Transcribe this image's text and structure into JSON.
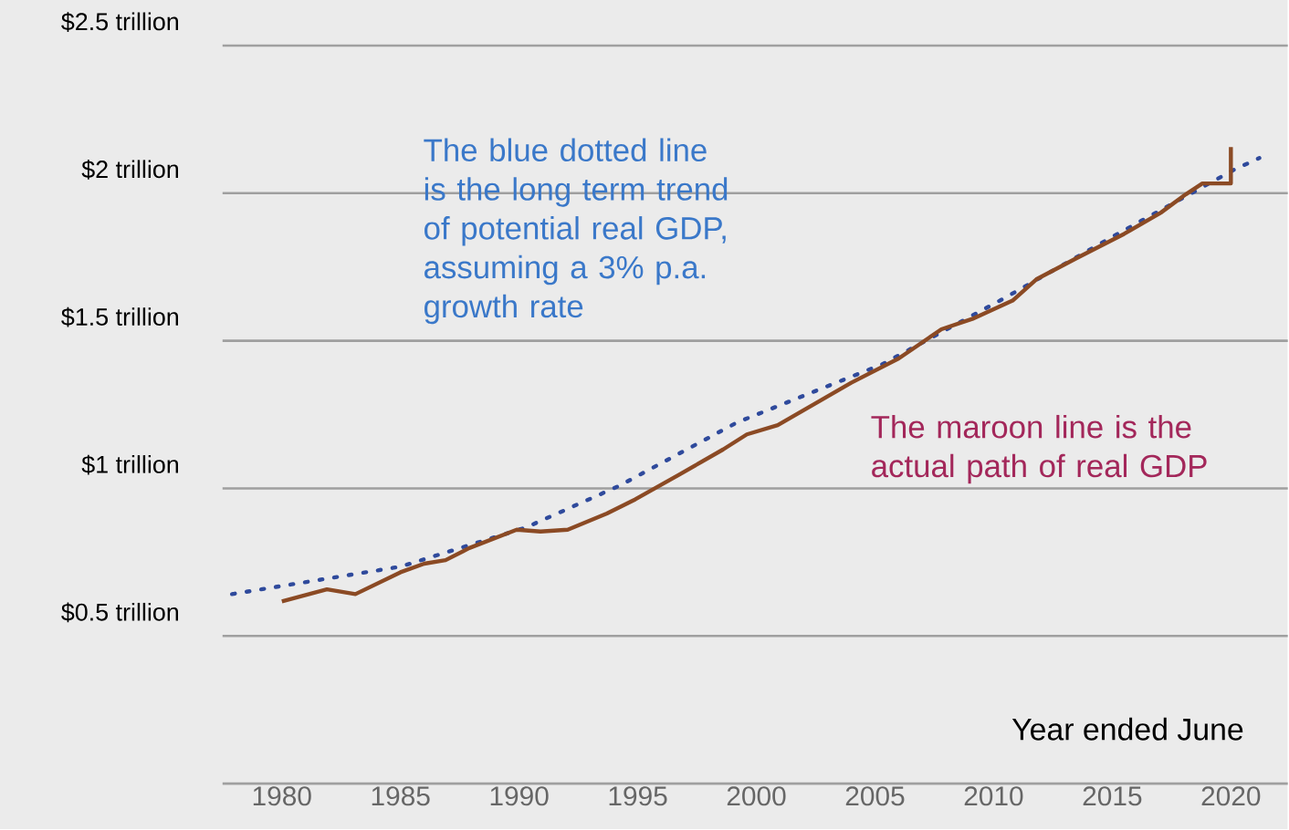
{
  "chart_data": {
    "type": "line",
    "xlabel": "Year ended June",
    "annotations": [
      "The blue dotted line is the long term trend of potential real GDP, assuming a 3% p.a. growth rate",
      "The maroon line is the actual path of real GDP"
    ],
    "series": [
      {
        "color": "#2f4a9c",
        "line_style": "dotted",
        "x": [
          1977.9,
          1985,
          1990.3,
          1994.2,
          1999.2,
          2005.3,
          2010.4,
          2015,
          2020.1,
          2021.2
        ],
        "values": [
          0.642,
          0.735,
          0.868,
          1.008,
          1.224,
          1.42,
          1.642,
          1.852,
          2.078,
          2.119
        ]
      },
      {
        "color": "#8b4a24",
        "line_style": "solid",
        "x": [
          1980,
          1981.9,
          1983.1,
          1985,
          1986,
          1986.9,
          1987.9,
          1989.9,
          1990.9,
          1992.05,
          1993.7,
          1994.9,
          1996.8,
          1998.6,
          1999.6,
          2000.9,
          2002.9,
          2004,
          2006,
          2007.8,
          2009.1,
          2010.8,
          2011.8,
          2013.5,
          2015.5,
          2017.05,
          2018.1,
          2018.8,
          2020,
          2020
        ],
        "values": [
          0.617,
          0.658,
          0.642,
          0.716,
          0.745,
          0.757,
          0.798,
          0.86,
          0.854,
          0.86,
          0.915,
          0.963,
          1.049,
          1.132,
          1.183,
          1.214,
          1.307,
          1.358,
          1.44,
          1.539,
          1.574,
          1.636,
          1.708,
          1.78,
          1.862,
          1.934,
          1.996,
          2.033,
          2.033,
          2.156
        ]
      }
    ],
    "xlim": [
      1977.5,
      2022.4
    ],
    "ylim": [
      0,
      2.5
    ],
    "xticks": [
      1980,
      1985,
      1990,
      1995,
      2000,
      2005,
      2010,
      2015,
      2020
    ],
    "yticks": [
      {
        "value": 0,
        "label": null
      },
      {
        "value": 0.5,
        "label": "$0.5 trillion"
      },
      {
        "value": 1,
        "label": "$1 trillion"
      },
      {
        "value": 1.5,
        "label": "$1.5 trillion"
      },
      {
        "value": 2,
        "label": "$2 trillion"
      },
      {
        "value": 2.5,
        "label": "$2.5 trillion"
      }
    ],
    "grid": "y",
    "marker": "none"
  }
}
